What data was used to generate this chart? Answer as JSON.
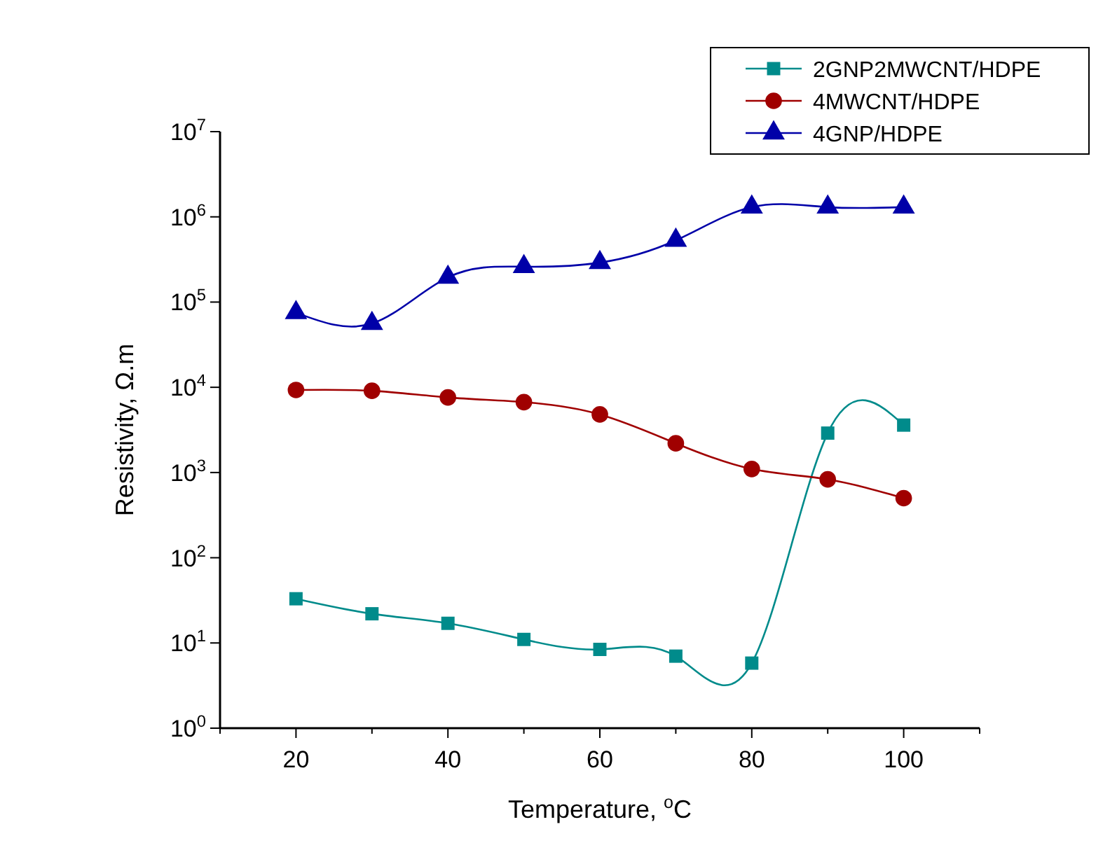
{
  "chart_data": {
    "type": "line",
    "xlabel": "Temperature, $^{o}$C",
    "ylabel": "Resistivity, Ω.m",
    "log": "y",
    "legend": "top right",
    "line_style": "solid",
    "xlim": [
      10,
      110
    ],
    "xticks": [
      {
        "value": 10,
        "label": null
      },
      20,
      {
        "value": 30,
        "label": null
      },
      40,
      {
        "value": 50,
        "label": null
      },
      60,
      {
        "value": 70,
        "label": null
      },
      80,
      {
        "value": 90,
        "label": null
      },
      100,
      {
        "value": 110,
        "label": null
      }
    ],
    "ylim": [
      1,
      10000000
    ],
    "yticks": [
      {
        "value": 1,
        "label": "10$^{0}$"
      },
      {
        "value": 10,
        "label": "10$^{1}$"
      },
      {
        "value": 100,
        "label": "10$^{2}$"
      },
      {
        "value": 1000,
        "label": "10$^{3}$"
      },
      {
        "value": 10000,
        "label": "10$^{4}$"
      },
      {
        "value": 100000,
        "label": "10$^{5}$"
      },
      {
        "value": 1000000,
        "label": "10$^{6}$"
      },
      {
        "value": 10000000,
        "label": "10$^{7}$"
      }
    ],
    "x": [
      20,
      30,
      40,
      50,
      60,
      70,
      80,
      90,
      100
    ],
    "series": [
      {
        "name": "2GNP2MWCNT/HDPE",
        "color": "#008b8b",
        "marker": "square",
        "values": [
          33,
          22,
          17,
          11,
          8.4,
          7,
          5.8,
          2900,
          3600
        ]
      },
      {
        "name": "4MWCNT/HDPE",
        "color": "#a00000",
        "marker": "circle",
        "values": [
          9300,
          9100,
          7600,
          6700,
          4800,
          2200,
          1100,
          830,
          500
        ]
      },
      {
        "name": "4GNP/HDPE",
        "color": "#0000a8",
        "marker": "triangle",
        "values": [
          75000,
          56000,
          195000,
          260000,
          290000,
          530000,
          1300000,
          1300000,
          1300000
        ]
      }
    ]
  }
}
